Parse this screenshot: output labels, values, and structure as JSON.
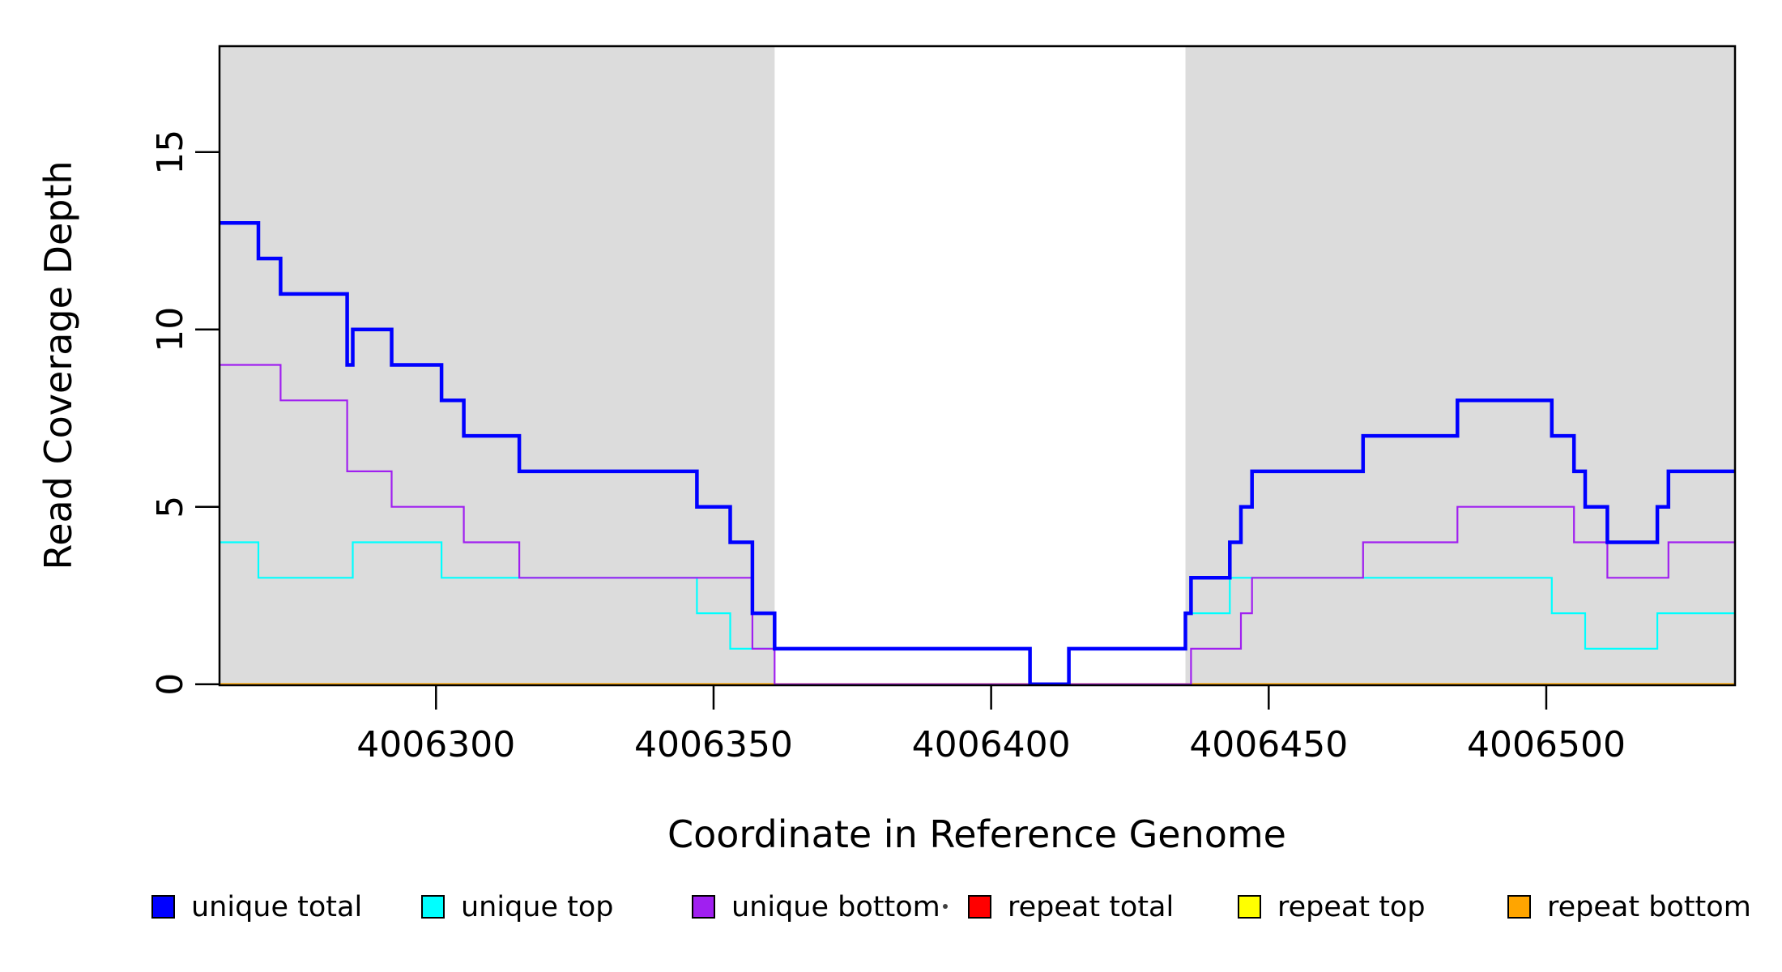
{
  "chart_data": {
    "type": "line",
    "subtype": "step-coverage",
    "title": "",
    "xlabel": "Coordinate in Reference Genome",
    "ylabel": "Read Coverage Depth",
    "xlim": [
      4006261,
      4006534
    ],
    "ylim": [
      0,
      18
    ],
    "x_ticks": [
      4006300,
      4006350,
      4006400,
      4006450,
      4006500
    ],
    "y_ticks": [
      0,
      5,
      10,
      15
    ],
    "grid": false,
    "legend_position": "bottom",
    "plot_background": "#FFFFFF",
    "shaded_region_color": "#DCDCDC",
    "shaded_regions": [
      {
        "x_start": 4006261,
        "x_end": 4006361
      },
      {
        "x_start": 4006435,
        "x_end": 4006534
      }
    ],
    "series": [
      {
        "name": "unique total",
        "color": "#0000FF",
        "line_width": 4.5,
        "steps": [
          [
            4006261,
            13
          ],
          [
            4006268,
            12
          ],
          [
            4006272,
            11
          ],
          [
            4006284,
            9
          ],
          [
            4006285,
            10
          ],
          [
            4006292,
            9
          ],
          [
            4006301,
            8
          ],
          [
            4006305,
            7
          ],
          [
            4006315,
            6
          ],
          [
            4006347,
            5
          ],
          [
            4006353,
            4
          ],
          [
            4006357,
            2
          ],
          [
            4006361,
            1
          ],
          [
            4006407,
            0
          ],
          [
            4006414,
            1
          ],
          [
            4006435,
            2
          ],
          [
            4006436,
            3
          ],
          [
            4006443,
            4
          ],
          [
            4006445,
            5
          ],
          [
            4006447,
            6
          ],
          [
            4006467,
            7
          ],
          [
            4006484,
            8
          ],
          [
            4006501,
            7
          ],
          [
            4006505,
            6
          ],
          [
            4006507,
            5
          ],
          [
            4006511,
            4
          ],
          [
            4006520,
            5
          ],
          [
            4006522,
            6
          ]
        ]
      },
      {
        "name": "unique top",
        "color": "#00FFFF",
        "line_width": 2.2,
        "steps": [
          [
            4006261,
            4
          ],
          [
            4006268,
            3
          ],
          [
            4006285,
            4
          ],
          [
            4006301,
            3
          ],
          [
            4006347,
            2
          ],
          [
            4006353,
            1
          ],
          [
            4006407,
            0
          ],
          [
            4006414,
            1
          ],
          [
            4006435,
            2
          ],
          [
            4006443,
            3
          ],
          [
            4006501,
            2
          ],
          [
            4006507,
            1
          ],
          [
            4006520,
            2
          ]
        ]
      },
      {
        "name": "unique bottom",
        "color": "#A020F0",
        "line_width": 2.2,
        "steps": [
          [
            4006261,
            9
          ],
          [
            4006272,
            8
          ],
          [
            4006284,
            6
          ],
          [
            4006292,
            5
          ],
          [
            4006305,
            4
          ],
          [
            4006315,
            3
          ],
          [
            4006357,
            1
          ],
          [
            4006361,
            0
          ],
          [
            4006436,
            1
          ],
          [
            4006445,
            2
          ],
          [
            4006447,
            3
          ],
          [
            4006467,
            4
          ],
          [
            4006484,
            5
          ],
          [
            4006505,
            4
          ],
          [
            4006511,
            3
          ],
          [
            4006522,
            4
          ]
        ]
      },
      {
        "name": "repeat total",
        "color": "#FF0000",
        "line_width": 2.2,
        "steps": [
          [
            4006261,
            0
          ]
        ]
      },
      {
        "name": "repeat top",
        "color": "#FFFF00",
        "line_width": 2.2,
        "steps": [
          [
            4006261,
            0
          ]
        ]
      },
      {
        "name": "repeat bottom",
        "color": "#FFA500",
        "line_width": 2.6,
        "steps": [
          [
            4006261,
            0
          ]
        ]
      }
    ]
  }
}
